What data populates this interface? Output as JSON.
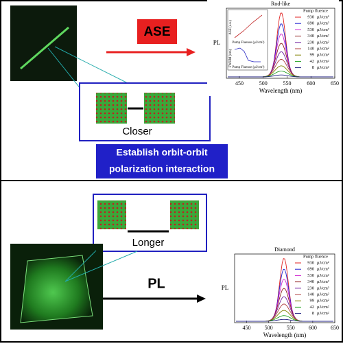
{
  "top": {
    "ase_label": "ASE",
    "closer_label": "Closer",
    "interaction_text": [
      "Establish orbit-orbit",
      "polarization interaction"
    ],
    "chart": {
      "title": "Rod-like",
      "legend_title": "Pump fluence",
      "fluences": [
        930,
        690,
        530,
        340,
        230,
        140,
        99,
        42,
        8
      ],
      "unit": "μJ/cm²",
      "colors": [
        "#e02020",
        "#2020d0",
        "#d020d0",
        "#902020",
        "#7020a0",
        "#b04040",
        "#808000",
        "#20a020",
        "#202080"
      ],
      "ylabel": "PL",
      "xlabel": "Wavelength (nm)",
      "xticks": [
        450,
        500,
        550,
        600,
        650
      ],
      "inset": {
        "ylabel_top": "ASE (a.u.)",
        "xlabel_top": "Pump Fluence (μJ/cm²)",
        "ylabel_bottom": "FWHM (nm)",
        "xlabel_bottom": "Pump Fluence (μJ/cm²)"
      }
    }
  },
  "bottom": {
    "pl_label": "PL",
    "longer_label": "Longer",
    "chart": {
      "title": "Diamond",
      "legend_title": "Pump fluence",
      "fluences": [
        930,
        690,
        530,
        340,
        230,
        140,
        99,
        42,
        8
      ],
      "unit": "μJ/cm²",
      "colors": [
        "#e02020",
        "#2020d0",
        "#d020d0",
        "#902020",
        "#7020a0",
        "#b04040",
        "#808000",
        "#20a020",
        "#202080"
      ],
      "ylabel": "PL",
      "xlabel": "Wavelength (nm)",
      "xticks": [
        450,
        500,
        550,
        600,
        650
      ]
    }
  }
}
